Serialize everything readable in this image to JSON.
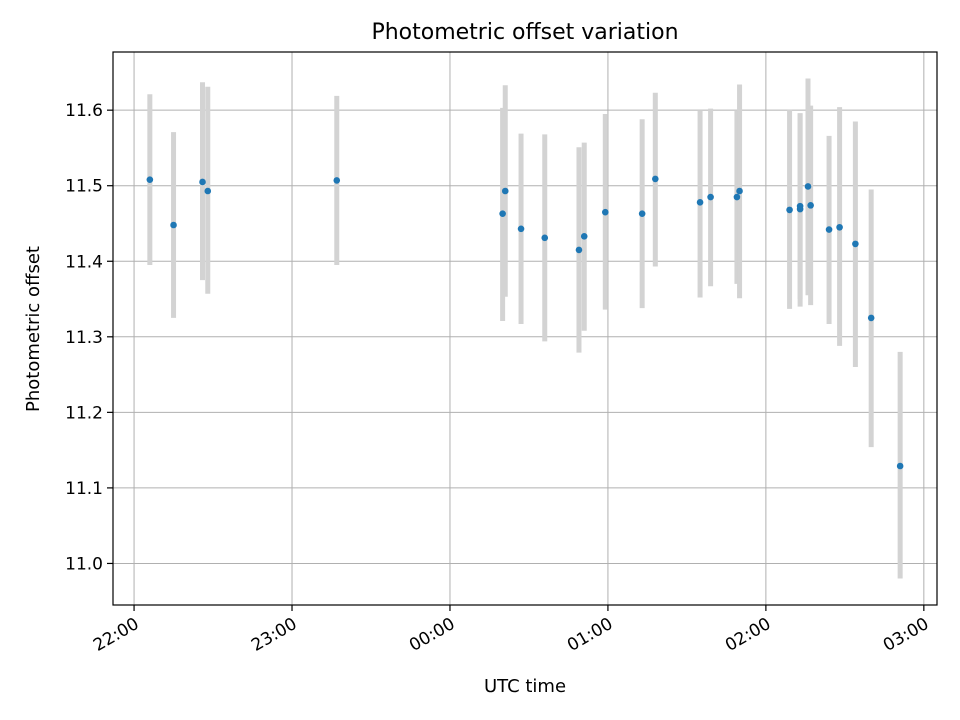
{
  "chart_data": {
    "type": "scatter",
    "title": "Photometric offset variation",
    "xlabel": "UTC time",
    "ylabel": "Photometric offset",
    "xlim": [
      "21:52",
      "03:05"
    ],
    "ylim": [
      10.945,
      11.677
    ],
    "x_ticks": [
      "22:00",
      "23:00",
      "00:00",
      "01:00",
      "02:00",
      "03:00"
    ],
    "y_ticks": [
      "11.0",
      "11.1",
      "11.2",
      "11.3",
      "11.4",
      "11.5",
      "11.6"
    ],
    "grid": true,
    "colors": {
      "marker": "#1f77b4",
      "errorbar": "#d3d3d3",
      "grid": "#b0b0b0"
    },
    "points": [
      {
        "x": "22:06",
        "y": 11.508,
        "ylo": 11.395,
        "yhi": 11.621
      },
      {
        "x": "22:15",
        "y": 11.448,
        "ylo": 11.325,
        "yhi": 11.571
      },
      {
        "x": "22:26",
        "y": 11.505,
        "ylo": 11.375,
        "yhi": 11.637
      },
      {
        "x": "22:28",
        "y": 11.493,
        "ylo": 11.357,
        "yhi": 11.631
      },
      {
        "x": "23:17",
        "y": 11.507,
        "ylo": 11.395,
        "yhi": 11.619
      },
      {
        "x": "00:20",
        "y": 11.463,
        "ylo": 11.321,
        "yhi": 11.603
      },
      {
        "x": "00:21",
        "y": 11.493,
        "ylo": 11.353,
        "yhi": 11.633
      },
      {
        "x": "00:27",
        "y": 11.443,
        "ylo": 11.317,
        "yhi": 11.569
      },
      {
        "x": "00:36",
        "y": 11.431,
        "ylo": 11.294,
        "yhi": 11.568
      },
      {
        "x": "00:49",
        "y": 11.415,
        "ylo": 11.279,
        "yhi": 11.551
      },
      {
        "x": "00:51",
        "y": 11.433,
        "ylo": 11.308,
        "yhi": 11.557
      },
      {
        "x": "00:59",
        "y": 11.465,
        "ylo": 11.336,
        "yhi": 11.595
      },
      {
        "x": "01:13",
        "y": 11.463,
        "ylo": 11.338,
        "yhi": 11.588
      },
      {
        "x": "01:18",
        "y": 11.509,
        "ylo": 11.393,
        "yhi": 11.623
      },
      {
        "x": "01:35",
        "y": 11.478,
        "ylo": 11.352,
        "yhi": 11.6
      },
      {
        "x": "01:39",
        "y": 11.485,
        "ylo": 11.367,
        "yhi": 11.602
      },
      {
        "x": "01:49",
        "y": 11.485,
        "ylo": 11.37,
        "yhi": 11.6
      },
      {
        "x": "01:50",
        "y": 11.493,
        "ylo": 11.351,
        "yhi": 11.634
      },
      {
        "x": "02:09",
        "y": 11.468,
        "ylo": 11.337,
        "yhi": 11.601
      },
      {
        "x": "02:13",
        "y": 11.469,
        "ylo": 11.34,
        "yhi": 11.596
      },
      {
        "x": "02:13",
        "y": 11.473,
        "ylo": 11.35,
        "yhi": 11.596
      },
      {
        "x": "02:16",
        "y": 11.499,
        "ylo": 11.355,
        "yhi": 11.642
      },
      {
        "x": "02:17",
        "y": 11.474,
        "ylo": 11.342,
        "yhi": 11.606
      },
      {
        "x": "02:24",
        "y": 11.442,
        "ylo": 11.317,
        "yhi": 11.566
      },
      {
        "x": "02:28",
        "y": 11.445,
        "ylo": 11.288,
        "yhi": 11.604
      },
      {
        "x": "02:34",
        "y": 11.423,
        "ylo": 11.26,
        "yhi": 11.585
      },
      {
        "x": "02:40",
        "y": 11.325,
        "ylo": 11.154,
        "yhi": 11.495
      },
      {
        "x": "02:51",
        "y": 11.129,
        "ylo": 10.98,
        "yhi": 11.28
      }
    ]
  }
}
